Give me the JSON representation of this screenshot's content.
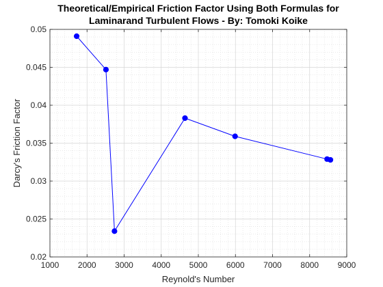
{
  "chart_data": {
    "type": "line",
    "title": "Theoretical/Empirical Friction Factor Using Both Formulas for",
    "title_line2": "Laminarand Turbulent Flows - By: Tomoki Koike",
    "xlabel": "Reynold's Number",
    "ylabel": "Darcy's Friction Factor",
    "xlim": [
      1000,
      9000
    ],
    "ylim": [
      0.02,
      0.05
    ],
    "xticks": [
      1000,
      2000,
      3000,
      4000,
      5000,
      6000,
      7000,
      8000,
      9000
    ],
    "xtick_labels": [
      "1000",
      "2000",
      "3000",
      "4000",
      "5000",
      "6000",
      "7000",
      "8000",
      "9000"
    ],
    "yticks": [
      0.02,
      0.025,
      0.03,
      0.035,
      0.04,
      0.045,
      0.05
    ],
    "ytick_labels": [
      "0.02",
      "0.025",
      "0.03",
      "0.035",
      "0.04",
      "0.045",
      "0.05"
    ],
    "grid": true,
    "minor_grid": true,
    "legend": false,
    "series": [
      {
        "color": "#0000ff",
        "marker": "circle",
        "x": [
          1720,
          2510,
          2740,
          4640,
          5990,
          8470,
          8560
        ],
        "y": [
          0.0491,
          0.0447,
          0.0234,
          0.0383,
          0.0359,
          0.0329,
          0.0328
        ]
      }
    ]
  }
}
